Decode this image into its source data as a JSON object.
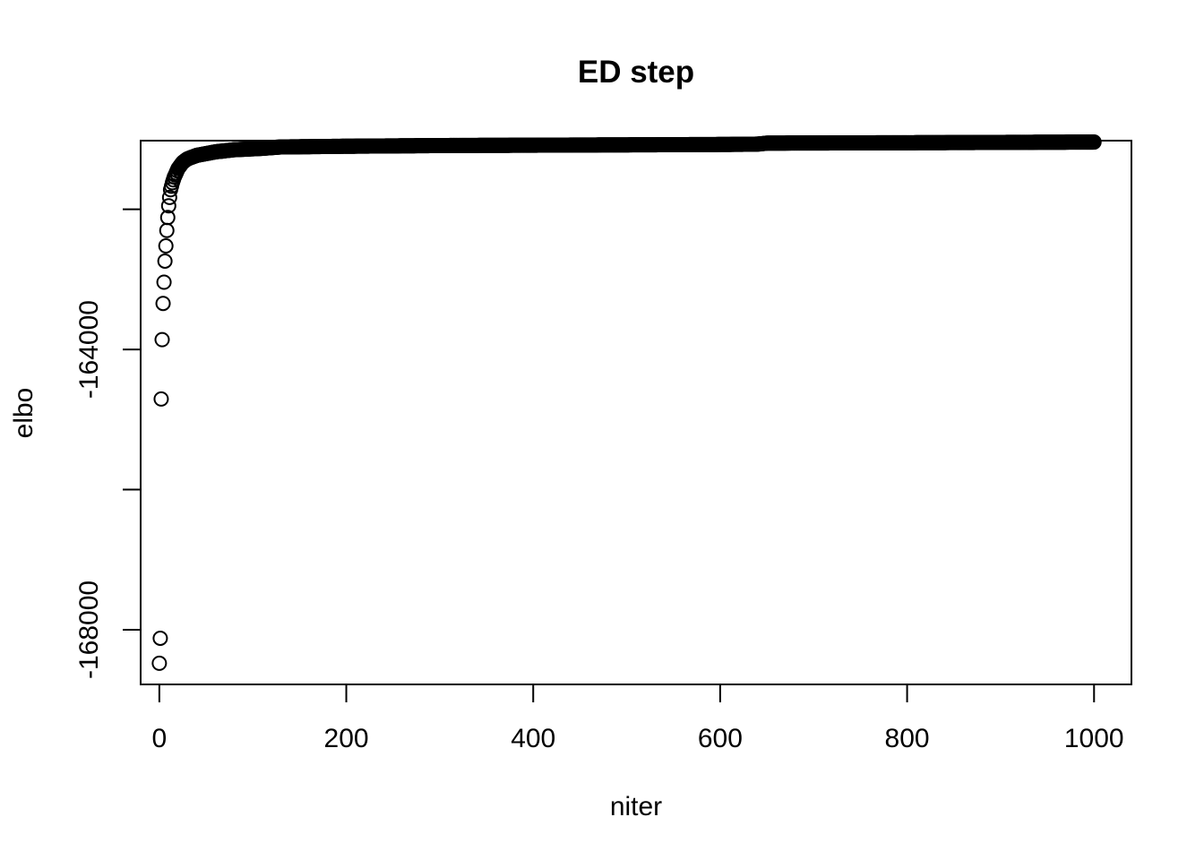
{
  "chart_data": {
    "type": "scatter",
    "title": "ED step",
    "xlabel": "niter",
    "ylabel": "elbo",
    "xlim": [
      -20,
      1040
    ],
    "ylim": [
      -168780,
      -161020
    ],
    "xticks": [
      0,
      200,
      400,
      600,
      800,
      1000
    ],
    "xtick_labels": [
      "0",
      "200",
      "400",
      "600",
      "800",
      "1000"
    ],
    "yticks": [
      -168000,
      -166000,
      -164000,
      -162000
    ],
    "ytick_labels": [
      "-168000",
      "",
      "-164000",
      ""
    ],
    "grid": false,
    "legend": "none",
    "marker": "open-circle",
    "n_points": 1001,
    "series": [
      {
        "name": "elbo",
        "anchors": [
          {
            "niter": 0,
            "elbo": -168478
          },
          {
            "niter": 1,
            "elbo": -168121
          },
          {
            "niter": 2,
            "elbo": -164707
          },
          {
            "niter": 3,
            "elbo": -163860
          },
          {
            "niter": 4,
            "elbo": -163343
          },
          {
            "niter": 5,
            "elbo": -163040
          },
          {
            "niter": 6,
            "elbo": -162739
          },
          {
            "niter": 7,
            "elbo": -162522
          },
          {
            "niter": 8,
            "elbo": -162302
          },
          {
            "niter": 9,
            "elbo": -162117
          },
          {
            "niter": 10,
            "elbo": -161950
          },
          {
            "niter": 11,
            "elbo": -161830
          },
          {
            "niter": 12,
            "elbo": -161720
          },
          {
            "niter": 14,
            "elbo": -161620
          },
          {
            "niter": 16,
            "elbo": -161540
          },
          {
            "niter": 20,
            "elbo": -161420
          },
          {
            "niter": 25,
            "elbo": -161330
          },
          {
            "niter": 30,
            "elbo": -161280
          },
          {
            "niter": 40,
            "elbo": -161230
          },
          {
            "niter": 60,
            "elbo": -161180
          },
          {
            "niter": 80,
            "elbo": -161150
          },
          {
            "niter": 110,
            "elbo": -161130
          },
          {
            "niter": 130,
            "elbo": -161110
          },
          {
            "niter": 200,
            "elbo": -161100
          },
          {
            "niter": 300,
            "elbo": -161090
          },
          {
            "niter": 400,
            "elbo": -161085
          },
          {
            "niter": 500,
            "elbo": -161080
          },
          {
            "niter": 600,
            "elbo": -161075
          },
          {
            "niter": 640,
            "elbo": -161070
          },
          {
            "niter": 650,
            "elbo": -161055
          },
          {
            "niter": 800,
            "elbo": -161050
          },
          {
            "niter": 900,
            "elbo": -161045
          },
          {
            "niter": 1000,
            "elbo": -161040
          }
        ]
      }
    ]
  }
}
